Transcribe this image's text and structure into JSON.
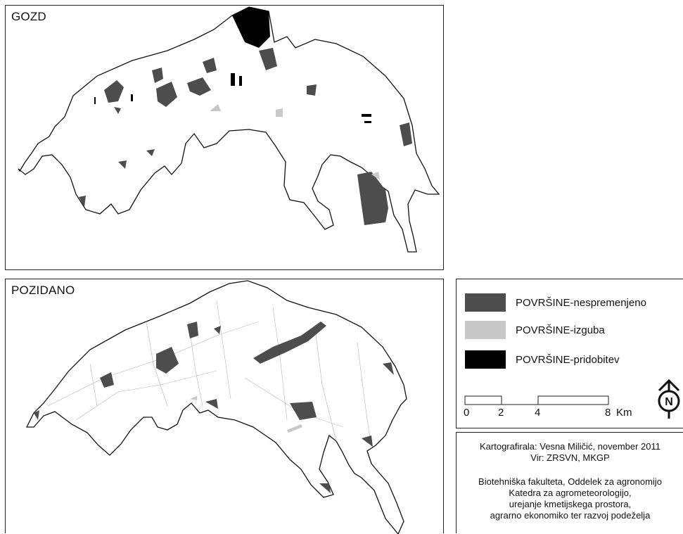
{
  "maps": {
    "forest": {
      "title": "GOZD"
    },
    "built": {
      "title": "POZIDANO"
    }
  },
  "legend": {
    "items": [
      {
        "label": "POVRŠINE-nespremenjeno",
        "color": "#4d4d4d"
      },
      {
        "label": "POVRŠINE-izguba",
        "color": "#c8c8c8"
      },
      {
        "label": "POVRŠINE-pridobitev",
        "color": "#000000"
      }
    ],
    "scale": {
      "ticks": [
        "0",
        "2",
        "4",
        "8"
      ],
      "unit": "Km"
    },
    "north_arrow": {
      "label": "N"
    }
  },
  "credits": {
    "line1": "Kartografirala: Vesna Miličić, november 2011",
    "line2": "Vir: ZRSVN, MKGP",
    "line3": "Biotehniška fakulteta, Oddelek za agronomijo",
    "line4": "Katedra za agrometeorologijo,",
    "line5": "urejanje kmetijskega prostora,",
    "line6": "agrarno ekonomiko ter razvoj podeželja"
  }
}
